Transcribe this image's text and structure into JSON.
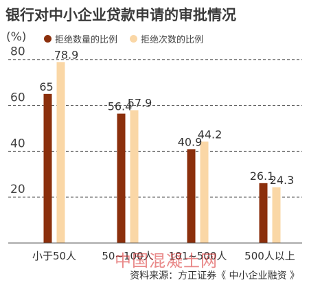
{
  "colors": {
    "series1": "#8B2F0C",
    "series2": "#FAD7A6",
    "grid": "#555555",
    "watermark": "#D72828"
  },
  "chart_data": {
    "type": "bar",
    "title": "银行对中小企业贷款申请的审批情况",
    "ylabel": "(%)",
    "ylim": [
      0,
      85
    ],
    "yticks": [
      20,
      40,
      60,
      80
    ],
    "grid": "dashed horizontal",
    "legend_position": "top",
    "categories": [
      "小于50人",
      "50~100人",
      "101~500人",
      "500人以上"
    ],
    "series": [
      {
        "name": "拒绝数量的比例",
        "values": [
          65,
          56.4,
          40.9,
          26.1
        ],
        "labels": [
          "65",
          "56.4",
          "40.9",
          "26.1"
        ]
      },
      {
        "name": "拒绝次数的比例",
        "values": [
          78.9,
          57.9,
          44.2,
          24.3
        ],
        "labels": [
          "78.9",
          "57.9",
          "44.2",
          "24.3"
        ]
      }
    ]
  },
  "source": "资料来源：方正证券《 中小企业融资 》",
  "watermark": "中国混凝土网"
}
